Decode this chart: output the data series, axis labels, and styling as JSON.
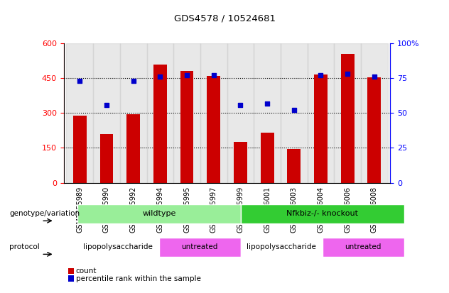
{
  "title": "GDS4578 / 10524681",
  "samples": [
    "GSM1055989",
    "GSM1055990",
    "GSM1055992",
    "GSM1055994",
    "GSM1055995",
    "GSM1055997",
    "GSM1055999",
    "GSM1056001",
    "GSM1056003",
    "GSM1056004",
    "GSM1056006",
    "GSM1056008"
  ],
  "counts": [
    290,
    210,
    295,
    510,
    480,
    460,
    175,
    215,
    145,
    465,
    555,
    455
  ],
  "percentiles": [
    73,
    56,
    73,
    76,
    77,
    77,
    56,
    57,
    52,
    77,
    78,
    76
  ],
  "bar_color": "#cc0000",
  "dot_color": "#0000cc",
  "left_ylim": [
    0,
    600
  ],
  "right_ylim": [
    0,
    100
  ],
  "left_yticks": [
    0,
    150,
    300,
    450,
    600
  ],
  "right_yticks": [
    0,
    25,
    50,
    75,
    100
  ],
  "right_yticklabels": [
    "0",
    "25",
    "50",
    "75",
    "100%"
  ],
  "hgrid_vals": [
    150,
    300,
    450
  ],
  "genotype_groups": [
    {
      "label": "wildtype",
      "start": 0,
      "end": 6,
      "color": "#99ee99"
    },
    {
      "label": "Nfkbiz-/- knockout",
      "start": 6,
      "end": 12,
      "color": "#33cc33"
    }
  ],
  "protocol_groups": [
    {
      "label": "lipopolysaccharide",
      "start": 0,
      "end": 3,
      "color": "#ffffff"
    },
    {
      "label": "untreated",
      "start": 3,
      "end": 6,
      "color": "#ee66ee"
    },
    {
      "label": "lipopolysaccharide",
      "start": 6,
      "end": 9,
      "color": "#ffffff"
    },
    {
      "label": "untreated",
      "start": 9,
      "end": 12,
      "color": "#ee66ee"
    }
  ],
  "legend_count_label": "count",
  "legend_pct_label": "percentile rank within the sample",
  "genotype_label": "genotype/variation",
  "protocol_label": "protocol"
}
